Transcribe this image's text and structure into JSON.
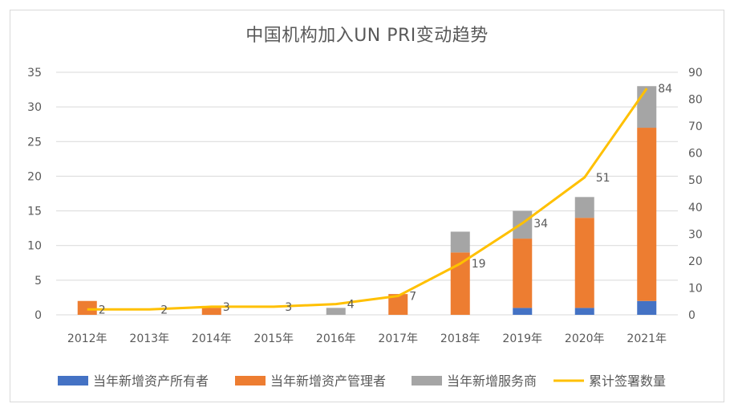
{
  "chart_data": {
    "type": "bar",
    "title": "中国机构加入UN PRI变动趋势",
    "categories": [
      "2012年",
      "2013年",
      "2014年",
      "2015年",
      "2016年",
      "2017年",
      "2018年",
      "2019年",
      "2020年",
      "2021年"
    ],
    "stacked": true,
    "series": [
      {
        "name": "当年新增资产所有者",
        "type": "bar",
        "axis": "left",
        "color": "#4472C4",
        "values": [
          0,
          0,
          0,
          0,
          0,
          0,
          0,
          1,
          1,
          2
        ]
      },
      {
        "name": "当年新增资产管理者",
        "type": "bar",
        "axis": "left",
        "color": "#ED7D31",
        "values": [
          2,
          0,
          1,
          0,
          0,
          3,
          9,
          10,
          13,
          25
        ]
      },
      {
        "name": "当年新增服务商",
        "type": "bar",
        "axis": "left",
        "color": "#A5A5A5",
        "values": [
          0,
          0,
          0,
          0,
          1,
          0,
          3,
          4,
          3,
          6
        ]
      },
      {
        "name": "累计签署数量",
        "type": "line",
        "axis": "right",
        "color": "#FFC000",
        "values": [
          2,
          2,
          3,
          3,
          4,
          7,
          19,
          34,
          51,
          84
        ],
        "labels": [
          "2",
          "2",
          "3",
          "3",
          "4",
          "7",
          "19",
          "34",
          "51",
          "84"
        ]
      }
    ],
    "y_left": {
      "min": 0,
      "max": 35,
      "ticks": [
        "0",
        "5",
        "10",
        "15",
        "20",
        "25",
        "30",
        "35"
      ]
    },
    "y_right": {
      "min": 0,
      "max": 90,
      "ticks": [
        "0",
        "10",
        "20",
        "30",
        "40",
        "50",
        "60",
        "70",
        "80",
        "90"
      ]
    },
    "grid": true,
    "legend_position": "bottom"
  }
}
